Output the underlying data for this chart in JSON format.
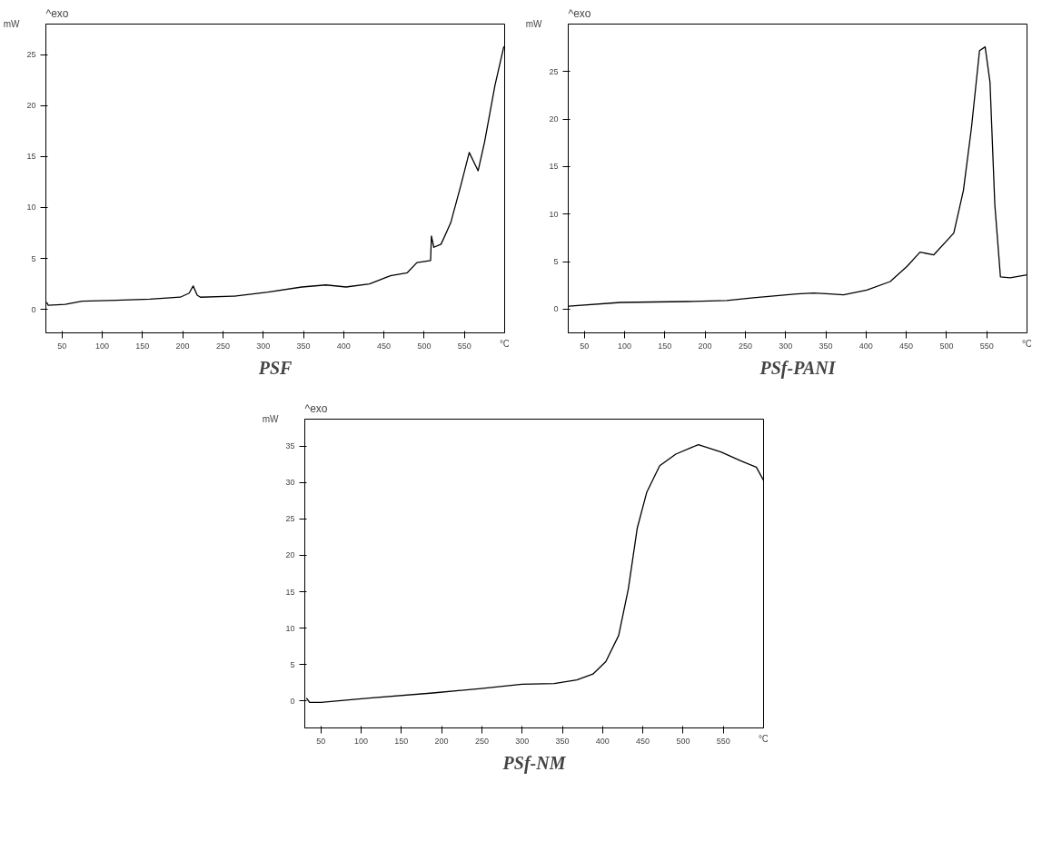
{
  "chart_data": [
    {
      "type": "line",
      "title": "PSF",
      "annotations": [
        "^exo"
      ],
      "xlim": [
        30,
        600
      ],
      "ylim": [
        -2.3,
        28
      ],
      "grid": false,
      "xlabel": "°C",
      "ylabel": "mW",
      "xticks": [
        50,
        100,
        150,
        200,
        250,
        300,
        350,
        400,
        450,
        500,
        550
      ],
      "yticks": [
        0,
        5,
        10,
        15,
        20,
        25
      ],
      "series": [
        {
          "color": "#000000",
          "x": [
            31,
            33,
            54,
            75,
            117,
            159,
            197,
            208,
            213,
            218,
            222,
            264,
            306,
            348,
            378,
            403,
            432,
            458,
            479,
            491,
            508,
            509,
            512,
            521,
            533,
            546,
            556,
            567,
            575,
            588,
            599
          ],
          "values": [
            0.7,
            0.4,
            0.5,
            0.8,
            0.9,
            1.0,
            1.2,
            1.6,
            2.3,
            1.4,
            1.2,
            1.3,
            1.7,
            2.2,
            2.4,
            2.2,
            2.5,
            3.3,
            3.6,
            4.6,
            4.8,
            7.2,
            6.1,
            6.4,
            8.5,
            12.3,
            15.4,
            13.6,
            16.4,
            22,
            25.8
          ]
        }
      ]
    },
    {
      "type": "line",
      "title": "PSf-PANI",
      "annotations": [
        "^exo"
      ],
      "xlim": [
        30,
        600
      ],
      "ylim": [
        -2.5,
        30
      ],
      "grid": false,
      "xlabel": "°C",
      "ylabel": "mW",
      "xticks": [
        50,
        100,
        150,
        200,
        250,
        300,
        350,
        400,
        450,
        500,
        550
      ],
      "yticks": [
        0,
        5,
        10,
        15,
        20,
        25
      ],
      "series": [
        {
          "color": "#000000",
          "x": [
            30.5,
            95,
            177,
            227,
            260,
            314,
            335,
            355,
            372,
            401,
            430,
            451,
            467,
            484,
            509,
            521,
            531,
            541,
            548,
            554,
            560,
            567,
            579,
            600
          ],
          "values": [
            0.3,
            0.7,
            0.8,
            0.9,
            1.2,
            1.6,
            1.7,
            1.6,
            1.5,
            2.0,
            2.9,
            4.5,
            6.0,
            5.7,
            8.0,
            12.5,
            19.1,
            27.2,
            27.6,
            23.9,
            11.0,
            3.4,
            3.3,
            3.6
          ]
        }
      ]
    },
    {
      "type": "line",
      "title": "PSf-NM",
      "annotations": [
        "^exo"
      ],
      "xlim": [
        30,
        600
      ],
      "ylim": [
        -3.7,
        38.7
      ],
      "grid": false,
      "xlabel": "°C",
      "ylabel": "mW",
      "xticks": [
        50,
        100,
        150,
        200,
        250,
        300,
        350,
        400,
        450,
        500,
        550
      ],
      "yticks": [
        0,
        5,
        10,
        15,
        20,
        25,
        30,
        35
      ],
      "series": [
        {
          "color": "#000000",
          "x": [
            32,
            36,
            50,
            110,
            189,
            249,
            300,
            340,
            368,
            388,
            404,
            420,
            432,
            443,
            455,
            471,
            491,
            519,
            547,
            571,
            591,
            600
          ],
          "values": [
            0.4,
            -0.2,
            -0.2,
            0.4,
            1.1,
            1.7,
            2.3,
            2.4,
            2.9,
            3.7,
            5.4,
            9.0,
            15.4,
            23.7,
            28.7,
            32.3,
            33.9,
            35.2,
            34.2,
            33.0,
            32.1,
            30.3
          ]
        }
      ]
    }
  ]
}
